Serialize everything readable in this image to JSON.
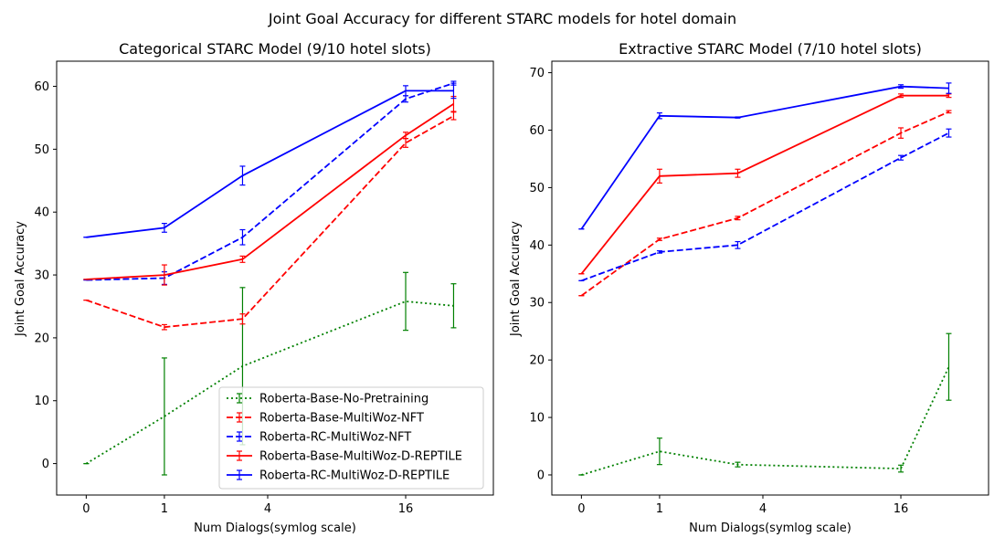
{
  "figure_title": "Joint Goal Accuracy for different STARC models for hotel domain",
  "chart_data": [
    {
      "type": "line",
      "title": "Categorical STARC Model (9/10 hotel slots)",
      "xlabel": "Num Dialogs(symlog scale)",
      "ylabel": "Joint Goal Accuracy",
      "x_scale": "symlog",
      "x": [
        0,
        1,
        3,
        16,
        25
      ],
      "xlim": [
        -0.3,
        36
      ],
      "xticks": [
        0,
        1,
        4,
        16
      ],
      "xtick_labels": [
        "0",
        "1",
        "4",
        "16"
      ],
      "ylim": [
        -5,
        64
      ],
      "yticks": [
        0,
        10,
        20,
        30,
        40,
        50,
        60
      ],
      "legend_position": "lower-right",
      "series": [
        {
          "name": "Roberta-Base-No-Pretraining",
          "color": "#008000",
          "dash": "dotted",
          "values": [
            0,
            7.5,
            15.5,
            25.8,
            25.1
          ],
          "errors": [
            0,
            9.3,
            12.5,
            4.6,
            3.5
          ]
        },
        {
          "name": "Roberta-Base-MultiWoz-NFT",
          "color": "#ff0000",
          "dash": "dashed",
          "values": [
            26,
            21.7,
            23,
            51,
            55.3
          ],
          "errors": [
            0,
            0.4,
            0.8,
            0.7,
            0.6
          ]
        },
        {
          "name": "Roberta-RC-MultiWoz-NFT",
          "color": "#0000ff",
          "dash": "dashed",
          "values": [
            29.2,
            29.5,
            36,
            58,
            60.5
          ],
          "errors": [
            0,
            1,
            1.2,
            0.5,
            0.3
          ]
        },
        {
          "name": "Roberta-Base-MultiWoz-D-REPTILE",
          "color": "#ff0000",
          "dash": "solid",
          "values": [
            29.3,
            30,
            32.5,
            52.2,
            57.2
          ],
          "errors": [
            0,
            1.6,
            0.5,
            0.5,
            1.2
          ]
        },
        {
          "name": "Roberta-RC-MultiWoz-D-REPTILE",
          "color": "#0000ff",
          "dash": "solid",
          "values": [
            36,
            37.5,
            45.8,
            59.3,
            59.3
          ],
          "errors": [
            0,
            0.7,
            1.5,
            0.8,
            1.2
          ]
        }
      ]
    },
    {
      "type": "line",
      "title": "Extractive STARC Model (7/10 hotel slots)",
      "xlabel": "Num Dialogs(symlog scale)",
      "ylabel": "Joint Goal Accuracy",
      "x_scale": "symlog",
      "x": [
        0,
        1,
        3,
        16,
        25
      ],
      "xlim": [
        -0.3,
        36
      ],
      "xticks": [
        0,
        1,
        4,
        16
      ],
      "xtick_labels": [
        "0",
        "1",
        "4",
        "16"
      ],
      "ylim": [
        -3.5,
        72
      ],
      "yticks": [
        0,
        10,
        20,
        30,
        40,
        50,
        60,
        70
      ],
      "series": [
        {
          "name": "Roberta-Base-No-Pretraining",
          "color": "#008000",
          "dash": "dotted",
          "values": [
            0,
            4.1,
            1.8,
            1.1,
            18.8
          ],
          "errors": [
            0,
            2.3,
            0.4,
            0.6,
            5.8
          ]
        },
        {
          "name": "Roberta-Base-MultiWoz-NFT",
          "color": "#ff0000",
          "dash": "dashed",
          "values": [
            31.2,
            41,
            44.7,
            59.5,
            63.2
          ],
          "errors": [
            0,
            0.2,
            0.3,
            0.9,
            0.2
          ]
        },
        {
          "name": "Roberta-RC-MultiWoz-NFT",
          "color": "#0000ff",
          "dash": "dashed",
          "values": [
            33.8,
            38.8,
            40,
            55.2,
            59.5
          ],
          "errors": [
            0,
            0.2,
            0.6,
            0.4,
            0.7
          ]
        },
        {
          "name": "Roberta-Base-MultiWoz-D-REPTILE",
          "color": "#ff0000",
          "dash": "solid",
          "values": [
            35,
            52,
            52.5,
            66,
            66
          ],
          "errors": [
            0,
            1.2,
            0.7,
            0.3,
            0.3
          ]
        },
        {
          "name": "Roberta-RC-MultiWoz-D-REPTILE",
          "color": "#0000ff",
          "dash": "solid",
          "values": [
            42.8,
            62.5,
            62.2,
            67.6,
            67.3
          ],
          "errors": [
            0,
            0.5,
            0.1,
            0.3,
            0.9
          ]
        }
      ]
    }
  ]
}
